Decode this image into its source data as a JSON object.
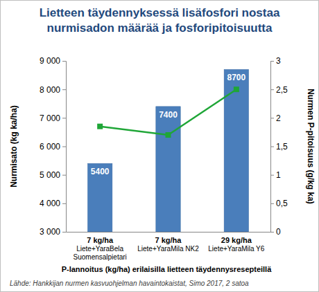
{
  "chart_data": {
    "type": "bar",
    "title": "Lietteen täydennyksessä lisäfosfori nostaa\nnurmisadon määrää ja fosforipitoisuutta",
    "categories": [
      "7 kg/ha\nLiete+YaraBela\nSuomensalpietari",
      "7 kg/ha\nLiete+YaraMila NK2",
      "29 kg/ha\nLiete+YaraMila Y6"
    ],
    "series": [
      {
        "type": "bar",
        "color": "#4a7ebb",
        "values": [
          5400,
          7400,
          8700
        ],
        "data_labels": true
      },
      {
        "type": "line",
        "color": "#1fa637",
        "marker": "square",
        "line_style": "solid",
        "axis": "y2",
        "values": [
          1.85,
          1.7,
          2.5
        ]
      }
    ],
    "xlabel": "P-lannoitus (kg/ha) erilaisilla lietteen täydennysresepteillä",
    "ylabel": "Nurmisato (kg ka/ha)",
    "y2label": "Nurmen P-pitoisuus (g/kg ka)",
    "ylim": [
      3000,
      9000
    ],
    "yticks": [
      {
        "value": 3000,
        "label": "3 000"
      },
      {
        "value": 4000,
        "label": "4 000"
      },
      {
        "value": 5000,
        "label": "5 000"
      },
      {
        "value": 6000,
        "label": "6 000"
      },
      {
        "value": 7000,
        "label": "7 000"
      },
      {
        "value": 8000,
        "label": "8 000"
      },
      {
        "value": 9000,
        "label": "9 000"
      }
    ],
    "y2lim": [
      0,
      3
    ],
    "y2ticks": [
      0,
      {
        "value": 0.5,
        "label": "0,5"
      },
      1,
      {
        "value": 1.5,
        "label": "1,5"
      },
      2,
      {
        "value": 2.5,
        "label": "2,5"
      },
      3
    ],
    "grid": false,
    "source": "Lähde: Hankkijan nurmen kasvuohjelman havaintokaistat, Simo 2017, 2 satoa"
  }
}
